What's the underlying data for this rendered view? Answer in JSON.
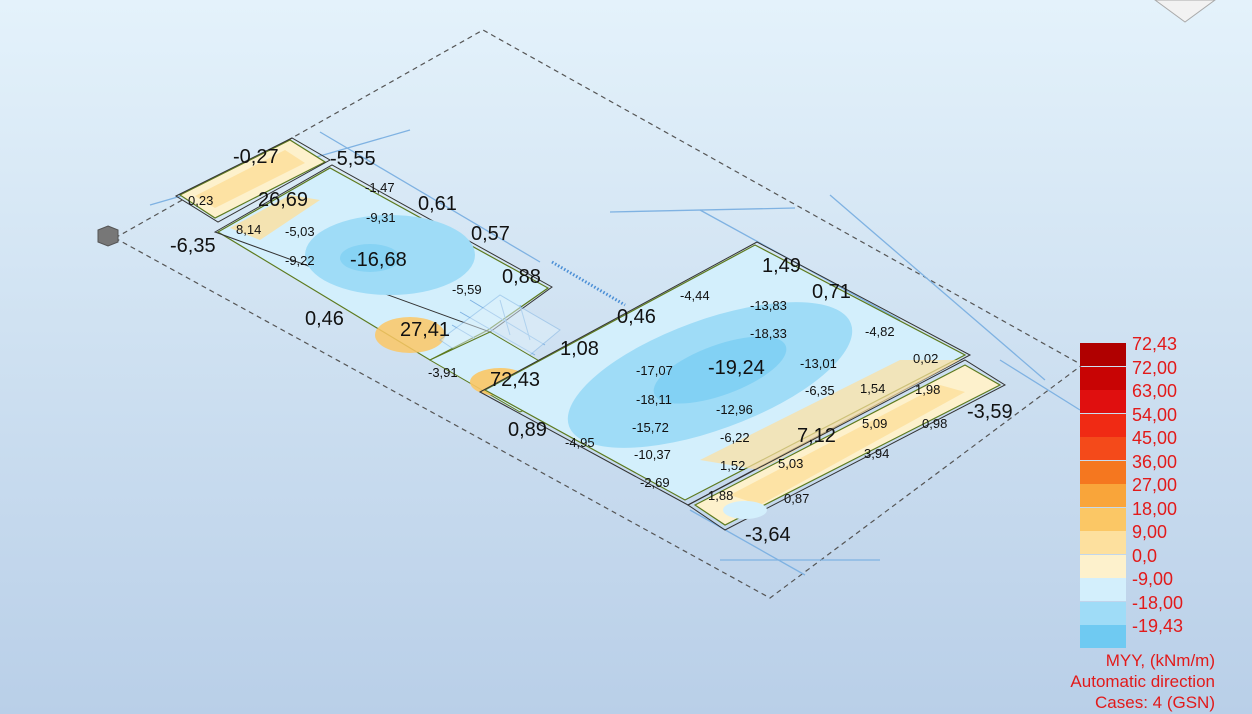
{
  "result": {
    "quantity": "MYY, (kNm/m)",
    "direction": "Automatic direction",
    "cases": "Cases: 4 (GSN)"
  },
  "legend": {
    "items": [
      {
        "label": "72,43",
        "color": "#b00000"
      },
      {
        "label": "72,00",
        "color": "#c80404"
      },
      {
        "label": "63,00",
        "color": "#e00f0f"
      },
      {
        "label": "54,00",
        "color": "#f02a14"
      },
      {
        "label": "45,00",
        "color": "#f44a1a"
      },
      {
        "label": "36,00",
        "color": "#f5771f"
      },
      {
        "label": "27,00",
        "color": "#f9a53a"
      },
      {
        "label": "18,00",
        "color": "#fbc765"
      },
      {
        "label": "9,00",
        "color": "#fde09e"
      },
      {
        "label": "0,0",
        "color": "#fdf1cc"
      },
      {
        "label": "-9,00",
        "color": "#d3effc"
      },
      {
        "label": "-18,00",
        "color": "#9fdcf7"
      },
      {
        "label": "-19,43",
        "color": "#6fcaf2"
      }
    ]
  },
  "values": {
    "v1": "-0,27",
    "v2": "-5,55",
    "v3": "0,23",
    "v4": "26,69",
    "v5": "-1,47",
    "v6": "0,61",
    "v7": "-9,31",
    "v8": "8,14",
    "v9": "-5,03",
    "v10": "0,57",
    "v11": "-6,35",
    "v12": "-9,22",
    "v13": "-16,68",
    "v14": "0,88",
    "v15": "-5,59",
    "v16": "0,46",
    "v17": "27,41",
    "v18": "-3,91",
    "v19": "72,43",
    "v20": "1,08",
    "v21": "0,46",
    "v22": "-4,44",
    "v23": "1,49",
    "v24": "-13,83",
    "v25": "0,71",
    "v26": "-18,33",
    "v27": "-4,82",
    "v28": "-17,07",
    "v29": "-19,24",
    "v30": "-13,01",
    "v31": "0,02",
    "v32": "-18,11",
    "v33": "-6,35",
    "v34": "1,54",
    "v35": "1,98",
    "v36": "-3,59",
    "v37": "0,89",
    "v38": "-12,96",
    "v39": "5,09",
    "v40": "0,98",
    "v41": "-4,95",
    "v42": "-15,72",
    "v43": "-6,22",
    "v44": "7,12",
    "v45": "-10,37",
    "v46": "3,94",
    "v47": "1,52",
    "v48": "5,03",
    "v49": "-2,69",
    "v50": "1,88",
    "v51": "0,87",
    "v52": "-3,64"
  }
}
